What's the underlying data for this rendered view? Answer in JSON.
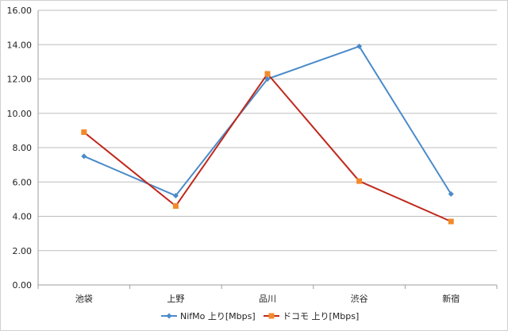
{
  "chart_data": {
    "type": "line",
    "title": "",
    "xlabel": "",
    "ylabel": "",
    "categories": [
      "池袋",
      "上野",
      "品川",
      "渋谷",
      "新宿"
    ],
    "ylim": [
      0,
      16
    ],
    "yticks": [
      "0.00",
      "2.00",
      "4.00",
      "6.00",
      "8.00",
      "10.00",
      "12.00",
      "14.00",
      "16.00"
    ],
    "grid": true,
    "legend_position": "bottom",
    "series": [
      {
        "name": "NifMo 上り[Mbps]",
        "values": [
          7.5,
          5.2,
          12.0,
          13.9,
          5.3
        ],
        "color": "#4a8bc9",
        "marker": "diamond"
      },
      {
        "name": "ドコモ 上り[Mbps]",
        "values": [
          8.9,
          4.6,
          12.3,
          6.05,
          3.7
        ],
        "color": "#c0281c",
        "marker": "square",
        "marker_color": "#f28a2c"
      }
    ]
  }
}
